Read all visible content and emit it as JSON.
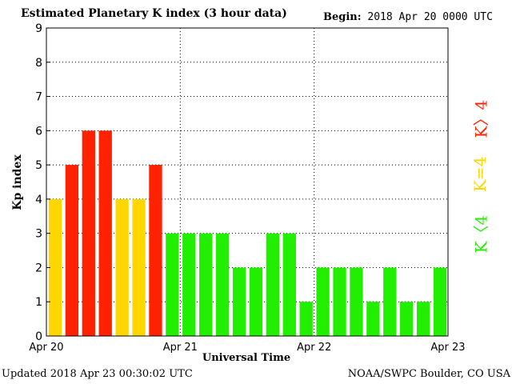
{
  "header": {
    "title": "Estimated Planetary K index (3 hour data)",
    "begin_label": "Begin:",
    "begin_value": "2018 Apr 20 0000 UTC"
  },
  "footer": {
    "updated_label": "Updated",
    "updated_value": "2018 Apr 23 00:30:02 UTC",
    "credit": "NOAA/SWPC Boulder, CO USA"
  },
  "legend": {
    "above": {
      "text": "K〉4",
      "color": "#ff2200"
    },
    "equal": {
      "text": "K=4",
      "color": "#ffd700"
    },
    "below": {
      "text": "K〈4",
      "color": "#22ee00"
    }
  },
  "chart_data": {
    "type": "bar",
    "ylabel": "Kp index",
    "xlabel": "Universal Time",
    "ylim": [
      0,
      9
    ],
    "yticks": [
      0,
      1,
      2,
      3,
      4,
      5,
      6,
      7,
      8,
      9
    ],
    "grid": true,
    "x_tick_labels": [
      "Apr 20",
      "Apr 21",
      "Apr 22",
      "Apr 23"
    ],
    "period_hours": 3,
    "values": [
      4,
      5,
      6,
      6,
      4,
      4,
      5,
      3,
      3,
      3,
      3,
      2,
      2,
      3,
      3,
      1,
      2,
      2,
      2,
      1,
      2,
      1,
      1,
      2
    ],
    "colors": {
      "below_4": "#22ee00",
      "equal_4": "#ffd700",
      "above_4": "#ff2200"
    }
  }
}
